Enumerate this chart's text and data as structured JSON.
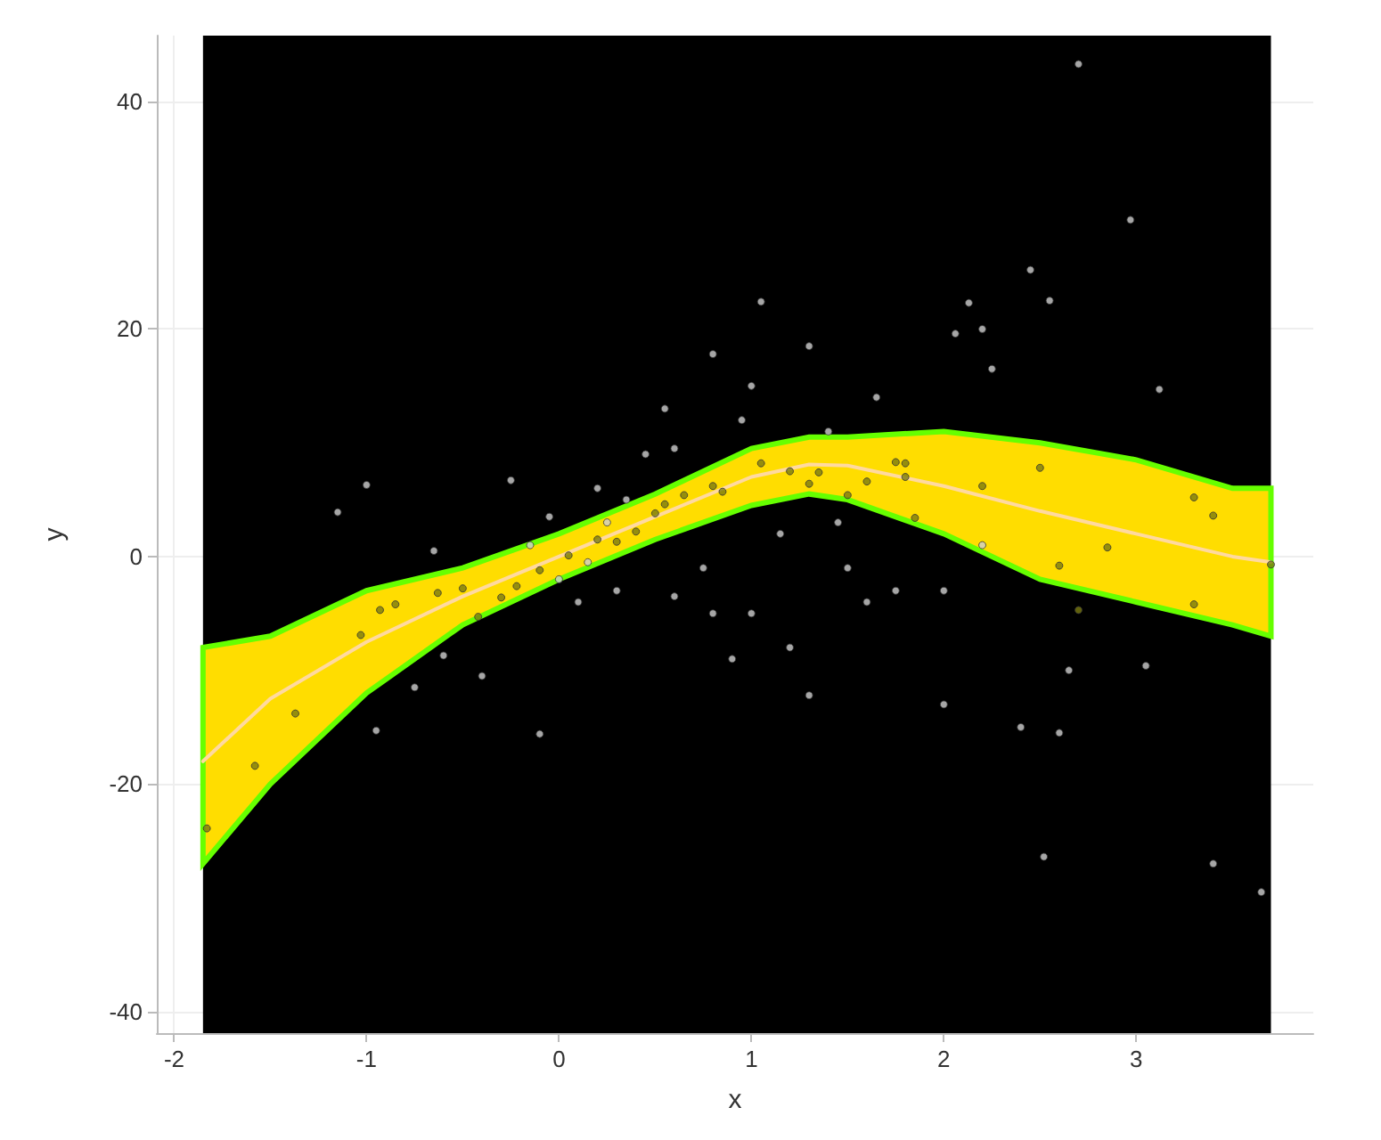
{
  "chart_data": {
    "type": "scatter",
    "xlabel": "x",
    "ylabel": "y",
    "xlim": [
      -2.09,
      3.92
    ],
    "ylim": [
      -41.9,
      45.8
    ],
    "xticks": [
      -2,
      -1,
      0,
      1,
      2,
      3
    ],
    "yticks": [
      -40,
      -20,
      0,
      20,
      40
    ],
    "grid": true,
    "marker": "circle",
    "bands": [
      {
        "axis": "x",
        "from": -1.85,
        "to": 3.7,
        "color": "#000000"
      }
    ],
    "series": [
      {
        "type": "line",
        "marker": "none",
        "color": "#ffd9a0",
        "x": [
          -1.85,
          -1.5,
          -1,
          -0.5,
          0,
          0.5,
          1,
          1.3,
          1.5,
          2,
          2.5,
          3,
          3.5,
          3.7
        ],
        "values": [
          -18,
          -12.5,
          -7.5,
          -3.5,
          0,
          3.5,
          7,
          8.1,
          8,
          6.2,
          4,
          2,
          0,
          -0.5
        ],
        "lower": [
          -27,
          -20,
          -12,
          -6,
          -2,
          1.5,
          4.5,
          5.5,
          5,
          2,
          -2,
          -4,
          -6,
          -7
        ],
        "upper": [
          -8,
          -7,
          -3,
          -1,
          2,
          5.5,
          9.5,
          10.5,
          10.5,
          11,
          10,
          8.5,
          6,
          6
        ]
      },
      {
        "color": "#d0d0d0",
        "x": [
          2.7,
          2.97,
          2.45,
          2.13,
          2.2,
          2.25,
          2.06,
          2.55,
          3.12,
          1.05,
          1.3,
          0.8,
          0.55,
          0.45,
          0.2,
          -0.25,
          -1.0,
          -1.15,
          -0.65,
          -0.15,
          0.0,
          0.1,
          0.3,
          0.6,
          0.8,
          1.0,
          1.3,
          1.2,
          0.9,
          1.5,
          1.6,
          2.0,
          2.4,
          2.52,
          2.6,
          2.65,
          3.05,
          3.4,
          3.65,
          2.2,
          2.0,
          -0.1,
          -0.75,
          -0.95,
          -0.6,
          -0.4,
          0.75,
          1.15,
          0.95,
          1.4,
          1.65,
          1.0,
          0.25,
          -0.05,
          0.6,
          0.35,
          0.15,
          1.75,
          1.45
        ],
        "values": [
          43.3,
          29.6,
          25.2,
          22.3,
          20,
          16.5,
          19.6,
          22.5,
          14.7,
          22.4,
          18.5,
          17.8,
          13,
          9,
          6,
          6.7,
          6.3,
          3.9,
          0.5,
          1,
          -2,
          -4,
          -3,
          -3.5,
          -5,
          -5,
          -12.2,
          -8,
          -9,
          -1,
          -4,
          -13,
          -15,
          -26.4,
          -15.5,
          -10,
          -9.6,
          -27,
          -29.5,
          1,
          -3,
          -15.6,
          -11.5,
          -15.3,
          -8.7,
          -10.5,
          -1,
          2,
          12,
          11,
          14,
          15,
          3,
          3.5,
          9.5,
          5,
          -0.5,
          -3,
          3
        ]
      },
      {
        "color": "#7a7a10",
        "x": [
          -1.83,
          -1.58,
          -1.37,
          -1.03,
          -0.93,
          -0.85,
          -0.63,
          -0.5,
          -0.42,
          -0.3,
          -0.22,
          -0.1,
          0.05,
          0.2,
          0.3,
          0.4,
          0.5,
          0.55,
          0.65,
          0.8,
          0.85,
          1.05,
          1.2,
          1.3,
          1.35,
          1.5,
          1.6,
          1.75,
          1.8,
          1.8,
          1.85,
          2.2,
          2.5,
          2.6,
          2.7,
          2.85,
          3.3,
          3.4,
          3.3,
          3.7
        ],
        "values": [
          -23.9,
          -18.4,
          -13.8,
          -6.9,
          -4.7,
          -4.2,
          -3.2,
          -2.8,
          -5.3,
          -3.6,
          -2.6,
          -1.2,
          0.1,
          1.5,
          1.3,
          2.2,
          3.8,
          4.6,
          5.4,
          6.2,
          5.7,
          8.2,
          7.5,
          6.4,
          7.4,
          5.4,
          6.6,
          8.3,
          8.2,
          7,
          3.4,
          6.2,
          7.8,
          -0.8,
          -4.7,
          0.8,
          5.2,
          3.6,
          -4.2,
          -0.7
        ]
      }
    ]
  }
}
